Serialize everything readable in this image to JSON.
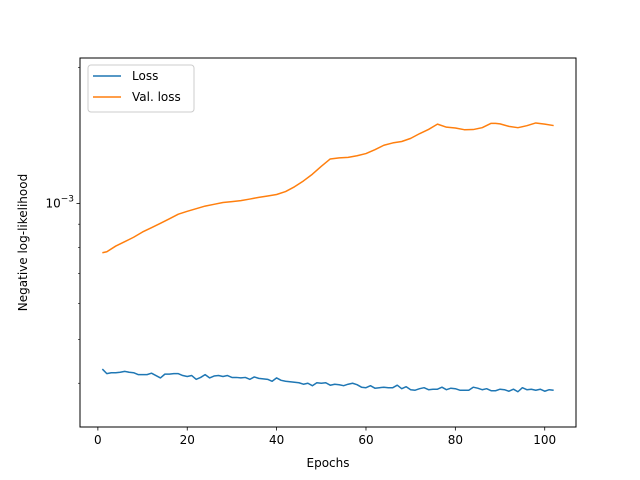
{
  "chart_data": {
    "type": "line",
    "xlabel": "Epochs",
    "ylabel": "Negative log-likelihood",
    "xlim": [
      -4,
      107
    ],
    "ylim": [
      0.00032,
      0.0021
    ],
    "yscale": "log",
    "grid": false,
    "legend_position": "top-left",
    "xticks": [
      0,
      20,
      40,
      60,
      80,
      100
    ],
    "yticks": [
      {
        "value": 0.001,
        "label": "10−3"
      }
    ],
    "series": [
      {
        "name": "Loss",
        "color": "#1f77b4",
        "x": [
          1,
          2,
          3,
          4,
          5,
          6,
          7,
          8,
          9,
          10,
          11,
          12,
          13,
          14,
          15,
          16,
          17,
          18,
          19,
          20,
          21,
          22,
          23,
          24,
          25,
          26,
          27,
          28,
          29,
          30,
          31,
          32,
          33,
          34,
          35,
          36,
          37,
          38,
          39,
          40,
          41,
          42,
          43,
          44,
          45,
          46,
          47,
          48,
          49,
          50,
          51,
          52,
          53,
          54,
          55,
          56,
          57,
          58,
          59,
          60,
          61,
          62,
          63,
          64,
          65,
          66,
          67,
          68,
          69,
          70,
          71,
          72,
          73,
          74,
          75,
          76,
          77,
          78,
          79,
          80,
          81,
          82,
          83,
          84,
          85,
          86,
          87,
          88,
          89,
          90,
          91,
          92,
          93,
          94,
          95,
          96,
          97,
          98,
          99,
          100,
          101,
          102
        ],
        "values": [
          0.00043,
          0.00042,
          0.000422,
          0.000422,
          0.000423,
          0.000425,
          0.000423,
          0.000422,
          0.000418,
          0.000418,
          0.000418,
          0.000421,
          0.000416,
          0.000411,
          0.000419,
          0.000419,
          0.00042,
          0.00042,
          0.000416,
          0.000414,
          0.000416,
          0.000408,
          0.000412,
          0.000418,
          0.000411,
          0.000415,
          0.000416,
          0.000414,
          0.000416,
          0.000412,
          0.000412,
          0.000411,
          0.000412,
          0.000408,
          0.000413,
          0.00041,
          0.000409,
          0.000408,
          0.000404,
          0.000411,
          0.000406,
          0.000404,
          0.000403,
          0.000402,
          0.000401,
          0.000398,
          0.0004,
          0.000395,
          0.000401,
          0.0004,
          0.000401,
          0.000396,
          0.000398,
          0.000397,
          0.000395,
          0.000398,
          0.0004,
          0.000397,
          0.000392,
          0.000391,
          0.000395,
          0.00039,
          0.000391,
          0.000392,
          0.000391,
          0.000391,
          0.000396,
          0.000389,
          0.000393,
          0.000387,
          0.000386,
          0.000389,
          0.000391,
          0.000387,
          0.000388,
          0.000388,
          0.000392,
          0.000387,
          0.00039,
          0.000389,
          0.000386,
          0.000386,
          0.000386,
          0.000392,
          0.00039,
          0.000387,
          0.000389,
          0.000385,
          0.000385,
          0.000388,
          0.000387,
          0.000384,
          0.000388,
          0.000383,
          0.000391,
          0.000387,
          0.000388,
          0.000386,
          0.000388,
          0.000384,
          0.000387,
          0.000386
        ]
      },
      {
        "name": "Val. loss",
        "color": "#ff7f0e",
        "x": [
          1,
          2,
          4,
          6,
          8,
          10,
          12,
          14,
          16,
          18,
          20,
          22,
          24,
          26,
          28,
          30,
          32,
          34,
          36,
          38,
          40,
          42,
          44,
          46,
          48,
          50,
          52,
          54,
          56,
          58,
          60,
          62,
          64,
          66,
          68,
          70,
          72,
          74,
          76,
          78,
          80,
          82,
          84,
          86,
          88,
          89,
          90,
          92,
          94,
          96,
          98,
          100,
          102
        ],
        "values": [
          0.000778,
          0.000782,
          0.000805,
          0.000823,
          0.000842,
          0.000865,
          0.000884,
          0.000904,
          0.000925,
          0.000947,
          0.000961,
          0.000974,
          0.000987,
          0.000996,
          0.001005,
          0.00101,
          0.001015,
          0.001023,
          0.001032,
          0.001039,
          0.001047,
          0.001063,
          0.001089,
          0.001122,
          0.001161,
          0.001209,
          0.001255,
          0.001262,
          0.001265,
          0.001276,
          0.00129,
          0.001316,
          0.001346,
          0.001362,
          0.001372,
          0.001394,
          0.001428,
          0.001459,
          0.001499,
          0.001476,
          0.00147,
          0.001457,
          0.001458,
          0.001472,
          0.001505,
          0.001505,
          0.001501,
          0.001482,
          0.001472,
          0.001487,
          0.001508,
          0.001499,
          0.001488
        ]
      }
    ]
  }
}
